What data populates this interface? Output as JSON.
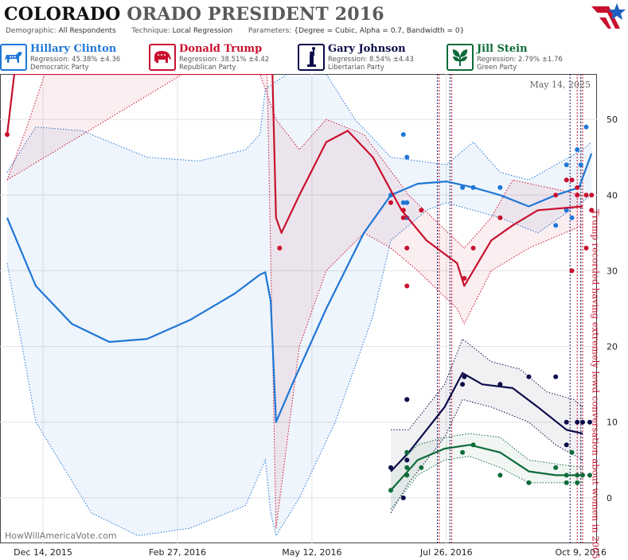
{
  "header": {
    "title_state": "COLORADO",
    "title_rest": "ORADO PRESIDENT 2016",
    "demographic_label": "Demographic:",
    "demographic_value": "All Respondents",
    "technique_label": "Technique:",
    "technique_value": "Local Regression",
    "parameters_label": "Parameters:",
    "parameters_value": "{Degree = Cubic, Alpha = 0.7, Bandwidth = 0}"
  },
  "legend": [
    {
      "name": "Hillary Clinton",
      "regression": "Regression: 45.38% ±4.36",
      "party": "Democratic Party",
      "color": "#1f77d6",
      "icon": "donkey-icon"
    },
    {
      "name": "Donald Trump",
      "regression": "Regression: 38.51% ±4.42",
      "party": "Republican Party",
      "color": "#c8102e",
      "icon": "elephant-icon"
    },
    {
      "name": "Gary Johnson",
      "regression": "Regression: 8.54% ±4.43",
      "party": "Libertarian Party",
      "color": "#0c0c4a",
      "icon": "liberty-statue-icon"
    },
    {
      "name": "Jill Stein",
      "regression": "Regression: 2.79% ±1.76",
      "party": "Green Party",
      "color": "#0e6b3a",
      "icon": "leaf-icon"
    }
  ],
  "colors": {
    "clinton": "#1f77d6",
    "trump": "#c8102e",
    "johnson": "#0c0c4a",
    "stein": "#0e6b3a"
  },
  "chart_data": {
    "type": "line",
    "date_label": "May 14, 2025",
    "watermark": "HowWillAmericaVote.com",
    "annotation": "Trump recorded having extremely lewd conversation about women in 2005",
    "x_ticks": [
      "Dec 14, 2015",
      "Feb 27, 2016",
      "May 12, 2016",
      "Jul 26, 2016",
      "Oct 9, 2016"
    ],
    "y_ticks": [
      0,
      10,
      20,
      30,
      40,
      50
    ],
    "ylim": [
      -6,
      56
    ],
    "grid": true,
    "vertical_markers": [
      "2016-07-21",
      "2016-07-22",
      "2016-07-28",
      "2016-07-29",
      "2016-10-03",
      "2016-10-07",
      "2016-10-09",
      "2016-10-10"
    ],
    "series": [
      {
        "name": "Hillary Clinton",
        "line": [
          [
            "2015-11-24",
            37
          ],
          [
            "2015-12-10",
            28
          ],
          [
            "2015-12-30",
            23
          ],
          [
            "2016-01-20",
            20.6
          ],
          [
            "2016-02-10",
            21
          ],
          [
            "2016-03-05",
            23.5
          ],
          [
            "2016-03-30",
            27
          ],
          [
            "2016-04-13",
            29.5
          ],
          [
            "2016-04-16",
            29.8
          ],
          [
            "2016-04-19",
            26
          ],
          [
            "2016-04-22",
            10
          ],
          [
            "2016-05-01",
            15
          ],
          [
            "2016-05-20",
            25
          ],
          [
            "2016-06-10",
            35
          ],
          [
            "2016-06-25",
            40
          ],
          [
            "2016-07-10",
            41.5
          ],
          [
            "2016-07-26",
            41.8
          ],
          [
            "2016-08-10",
            41
          ],
          [
            "2016-08-25",
            40
          ],
          [
            "2016-09-10",
            38.5
          ],
          [
            "2016-09-25",
            40
          ],
          [
            "2016-10-08",
            41
          ],
          [
            "2016-10-15",
            45.5
          ]
        ],
        "upper": [
          [
            "2015-11-24",
            43
          ],
          [
            "2015-12-10",
            49
          ],
          [
            "2016-01-05",
            48.5
          ],
          [
            "2016-02-10",
            45
          ],
          [
            "2016-03-10",
            44.5
          ],
          [
            "2016-04-05",
            46
          ],
          [
            "2016-04-13",
            48
          ],
          [
            "2016-04-16",
            54
          ],
          [
            "2016-04-22",
            55
          ],
          [
            "2016-05-05",
            57
          ],
          [
            "2016-05-20",
            56
          ],
          [
            "2016-06-05",
            50
          ],
          [
            "2016-06-25",
            45
          ],
          [
            "2016-07-26",
            44
          ],
          [
            "2016-08-10",
            47
          ],
          [
            "2016-08-25",
            43
          ],
          [
            "2016-09-10",
            42
          ],
          [
            "2016-10-10",
            46
          ],
          [
            "2016-10-15",
            47
          ]
        ],
        "lower": [
          [
            "2015-11-24",
            31
          ],
          [
            "2015-12-10",
            10
          ],
          [
            "2016-01-10",
            -2
          ],
          [
            "2016-02-05",
            -5
          ],
          [
            "2016-03-05",
            -4
          ],
          [
            "2016-04-05",
            -1
          ],
          [
            "2016-04-16",
            5
          ],
          [
            "2016-04-19",
            -2
          ],
          [
            "2016-04-22",
            -5
          ],
          [
            "2016-05-05",
            0
          ],
          [
            "2016-05-25",
            10
          ],
          [
            "2016-06-15",
            24
          ],
          [
            "2016-06-25",
            34
          ],
          [
            "2016-07-15",
            38
          ],
          [
            "2016-07-26",
            39
          ],
          [
            "2016-08-25",
            37
          ],
          [
            "2016-09-15",
            35
          ],
          [
            "2016-10-15",
            40
          ]
        ],
        "points": [
          [
            "2016-06-25",
            40
          ],
          [
            "2016-07-02",
            48
          ],
          [
            "2016-07-02",
            39
          ],
          [
            "2016-07-04",
            45
          ],
          [
            "2016-07-04",
            39
          ],
          [
            "2016-07-04",
            37
          ],
          [
            "2016-08-04",
            41
          ],
          [
            "2016-08-10",
            41
          ],
          [
            "2016-08-25",
            41
          ],
          [
            "2016-09-25",
            36
          ],
          [
            "2016-10-01",
            38
          ],
          [
            "2016-10-01",
            44
          ],
          [
            "2016-10-04",
            37
          ],
          [
            "2016-10-07",
            46
          ],
          [
            "2016-10-09",
            44
          ],
          [
            "2016-10-12",
            49
          ]
        ]
      },
      {
        "name": "Donald Trump",
        "line": [
          [
            "2015-11-24",
            48
          ],
          [
            "2015-11-28",
            56
          ],
          [
            "2016-04-20",
            56
          ],
          [
            "2016-04-22",
            37
          ],
          [
            "2016-04-25",
            35
          ],
          [
            "2016-05-05",
            40
          ],
          [
            "2016-05-20",
            47
          ],
          [
            "2016-06-01",
            48.5
          ],
          [
            "2016-06-15",
            45
          ],
          [
            "2016-07-01",
            38
          ],
          [
            "2016-07-15",
            34
          ],
          [
            "2016-08-01",
            31
          ],
          [
            "2016-08-05",
            28
          ],
          [
            "2016-08-10",
            30
          ],
          [
            "2016-08-20",
            34
          ],
          [
            "2016-09-01",
            36
          ],
          [
            "2016-09-15",
            38
          ],
          [
            "2016-10-10",
            38.5
          ]
        ],
        "upper": [
          [
            "2015-11-24",
            42
          ],
          [
            "2015-12-05",
            49
          ],
          [
            "2015-12-15",
            56
          ],
          [
            "2016-04-13",
            56
          ],
          [
            "2016-04-22",
            50
          ],
          [
            "2016-05-05",
            46
          ],
          [
            "2016-05-20",
            50
          ],
          [
            "2016-06-10",
            48
          ],
          [
            "2016-07-05",
            40
          ],
          [
            "2016-08-05",
            33
          ],
          [
            "2016-08-20",
            37
          ],
          [
            "2016-09-01",
            42
          ],
          [
            "2016-10-10",
            40
          ]
        ],
        "lower": [
          [
            "2015-11-24",
            42
          ],
          [
            "2016-03-01",
            56
          ],
          [
            "2016-04-17",
            56
          ],
          [
            "2016-04-22",
            -4
          ],
          [
            "2016-05-05",
            20
          ],
          [
            "2016-05-20",
            30
          ],
          [
            "2016-06-10",
            35
          ],
          [
            "2016-06-25",
            33
          ],
          [
            "2016-07-10",
            30
          ],
          [
            "2016-08-01",
            25
          ],
          [
            "2016-08-05",
            23
          ],
          [
            "2016-08-20",
            30
          ],
          [
            "2016-09-10",
            33
          ],
          [
            "2016-10-10",
            36
          ]
        ],
        "points": [
          [
            "2015-11-24",
            48
          ],
          [
            "2016-04-24",
            33
          ],
          [
            "2016-06-25",
            39
          ],
          [
            "2016-07-02",
            38
          ],
          [
            "2016-07-02",
            37
          ],
          [
            "2016-07-04",
            33
          ],
          [
            "2016-07-04",
            28
          ],
          [
            "2016-07-12",
            38
          ],
          [
            "2016-08-05",
            29
          ],
          [
            "2016-08-10",
            33
          ],
          [
            "2016-08-25",
            37
          ],
          [
            "2016-09-25",
            40
          ],
          [
            "2016-10-01",
            42
          ],
          [
            "2016-10-04",
            30
          ],
          [
            "2016-10-04",
            42
          ],
          [
            "2016-10-07",
            41
          ],
          [
            "2016-10-07",
            40
          ],
          [
            "2016-10-12",
            40
          ],
          [
            "2016-10-12",
            33
          ],
          [
            "2016-10-15",
            38
          ],
          [
            "2016-10-15",
            40
          ]
        ]
      },
      {
        "name": "Gary Johnson",
        "line": [
          [
            "2016-06-25",
            3.5
          ],
          [
            "2016-07-05",
            6
          ],
          [
            "2016-07-15",
            9
          ],
          [
            "2016-07-25",
            12
          ],
          [
            "2016-08-04",
            16.5
          ],
          [
            "2016-08-15",
            15
          ],
          [
            "2016-09-01",
            14.5
          ],
          [
            "2016-09-15",
            12
          ],
          [
            "2016-10-01",
            9
          ],
          [
            "2016-10-10",
            8.5
          ]
        ],
        "upper": [
          [
            "2016-06-25",
            9
          ],
          [
            "2016-07-05",
            9
          ],
          [
            "2016-07-25",
            15
          ],
          [
            "2016-08-04",
            21
          ],
          [
            "2016-08-20",
            18
          ],
          [
            "2016-09-05",
            17
          ],
          [
            "2016-09-20",
            14
          ],
          [
            "2016-10-05",
            13
          ],
          [
            "2016-10-10",
            12
          ]
        ],
        "lower": [
          [
            "2016-06-25",
            -2
          ],
          [
            "2016-07-05",
            2
          ],
          [
            "2016-07-25",
            8
          ],
          [
            "2016-08-04",
            13
          ],
          [
            "2016-08-20",
            12
          ],
          [
            "2016-09-10",
            10
          ],
          [
            "2016-09-25",
            7
          ],
          [
            "2016-10-10",
            5
          ]
        ],
        "points": [
          [
            "2016-06-25",
            4
          ],
          [
            "2016-07-02",
            0
          ],
          [
            "2016-07-04",
            5
          ],
          [
            "2016-07-04",
            13
          ],
          [
            "2016-07-04",
            13
          ],
          [
            "2016-08-04",
            15
          ],
          [
            "2016-08-05",
            16
          ],
          [
            "2016-08-25",
            15
          ],
          [
            "2016-09-10",
            16
          ],
          [
            "2016-09-25",
            16
          ],
          [
            "2016-10-01",
            7
          ],
          [
            "2016-10-01",
            10
          ],
          [
            "2016-10-07",
            10
          ],
          [
            "2016-10-10",
            10
          ],
          [
            "2016-10-14",
            10
          ]
        ]
      },
      {
        "name": "Jill Stein",
        "line": [
          [
            "2016-06-25",
            1
          ],
          [
            "2016-07-10",
            5
          ],
          [
            "2016-07-25",
            6.5
          ],
          [
            "2016-08-08",
            7
          ],
          [
            "2016-08-25",
            6
          ],
          [
            "2016-09-10",
            3.5
          ],
          [
            "2016-09-25",
            3
          ],
          [
            "2016-10-10",
            3
          ]
        ],
        "upper": [
          [
            "2016-06-25",
            3.5
          ],
          [
            "2016-07-10",
            7
          ],
          [
            "2016-07-25",
            8
          ],
          [
            "2016-08-08",
            8.5
          ],
          [
            "2016-08-25",
            8
          ],
          [
            "2016-09-10",
            5
          ],
          [
            "2016-09-25",
            4.5
          ],
          [
            "2016-10-10",
            4
          ]
        ],
        "lower": [
          [
            "2016-06-25",
            -1.5
          ],
          [
            "2016-07-10",
            3
          ],
          [
            "2016-07-25",
            5
          ],
          [
            "2016-08-08",
            5.5
          ],
          [
            "2016-08-25",
            4
          ],
          [
            "2016-09-10",
            2
          ],
          [
            "2016-09-25",
            2
          ],
          [
            "2016-10-10",
            2
          ]
        ],
        "points": [
          [
            "2016-06-25",
            1
          ],
          [
            "2016-07-04",
            3
          ],
          [
            "2016-07-04",
            6
          ],
          [
            "2016-07-04",
            4
          ],
          [
            "2016-07-12",
            4
          ],
          [
            "2016-08-04",
            6
          ],
          [
            "2016-08-10",
            7
          ],
          [
            "2016-08-25",
            3
          ],
          [
            "2016-09-10",
            2
          ],
          [
            "2016-09-25",
            4
          ],
          [
            "2016-10-01",
            2
          ],
          [
            "2016-10-01",
            3
          ],
          [
            "2016-10-04",
            6
          ],
          [
            "2016-10-07",
            2
          ],
          [
            "2016-10-07",
            3
          ],
          [
            "2016-10-10",
            3
          ],
          [
            "2016-10-14",
            3
          ]
        ]
      }
    ]
  }
}
